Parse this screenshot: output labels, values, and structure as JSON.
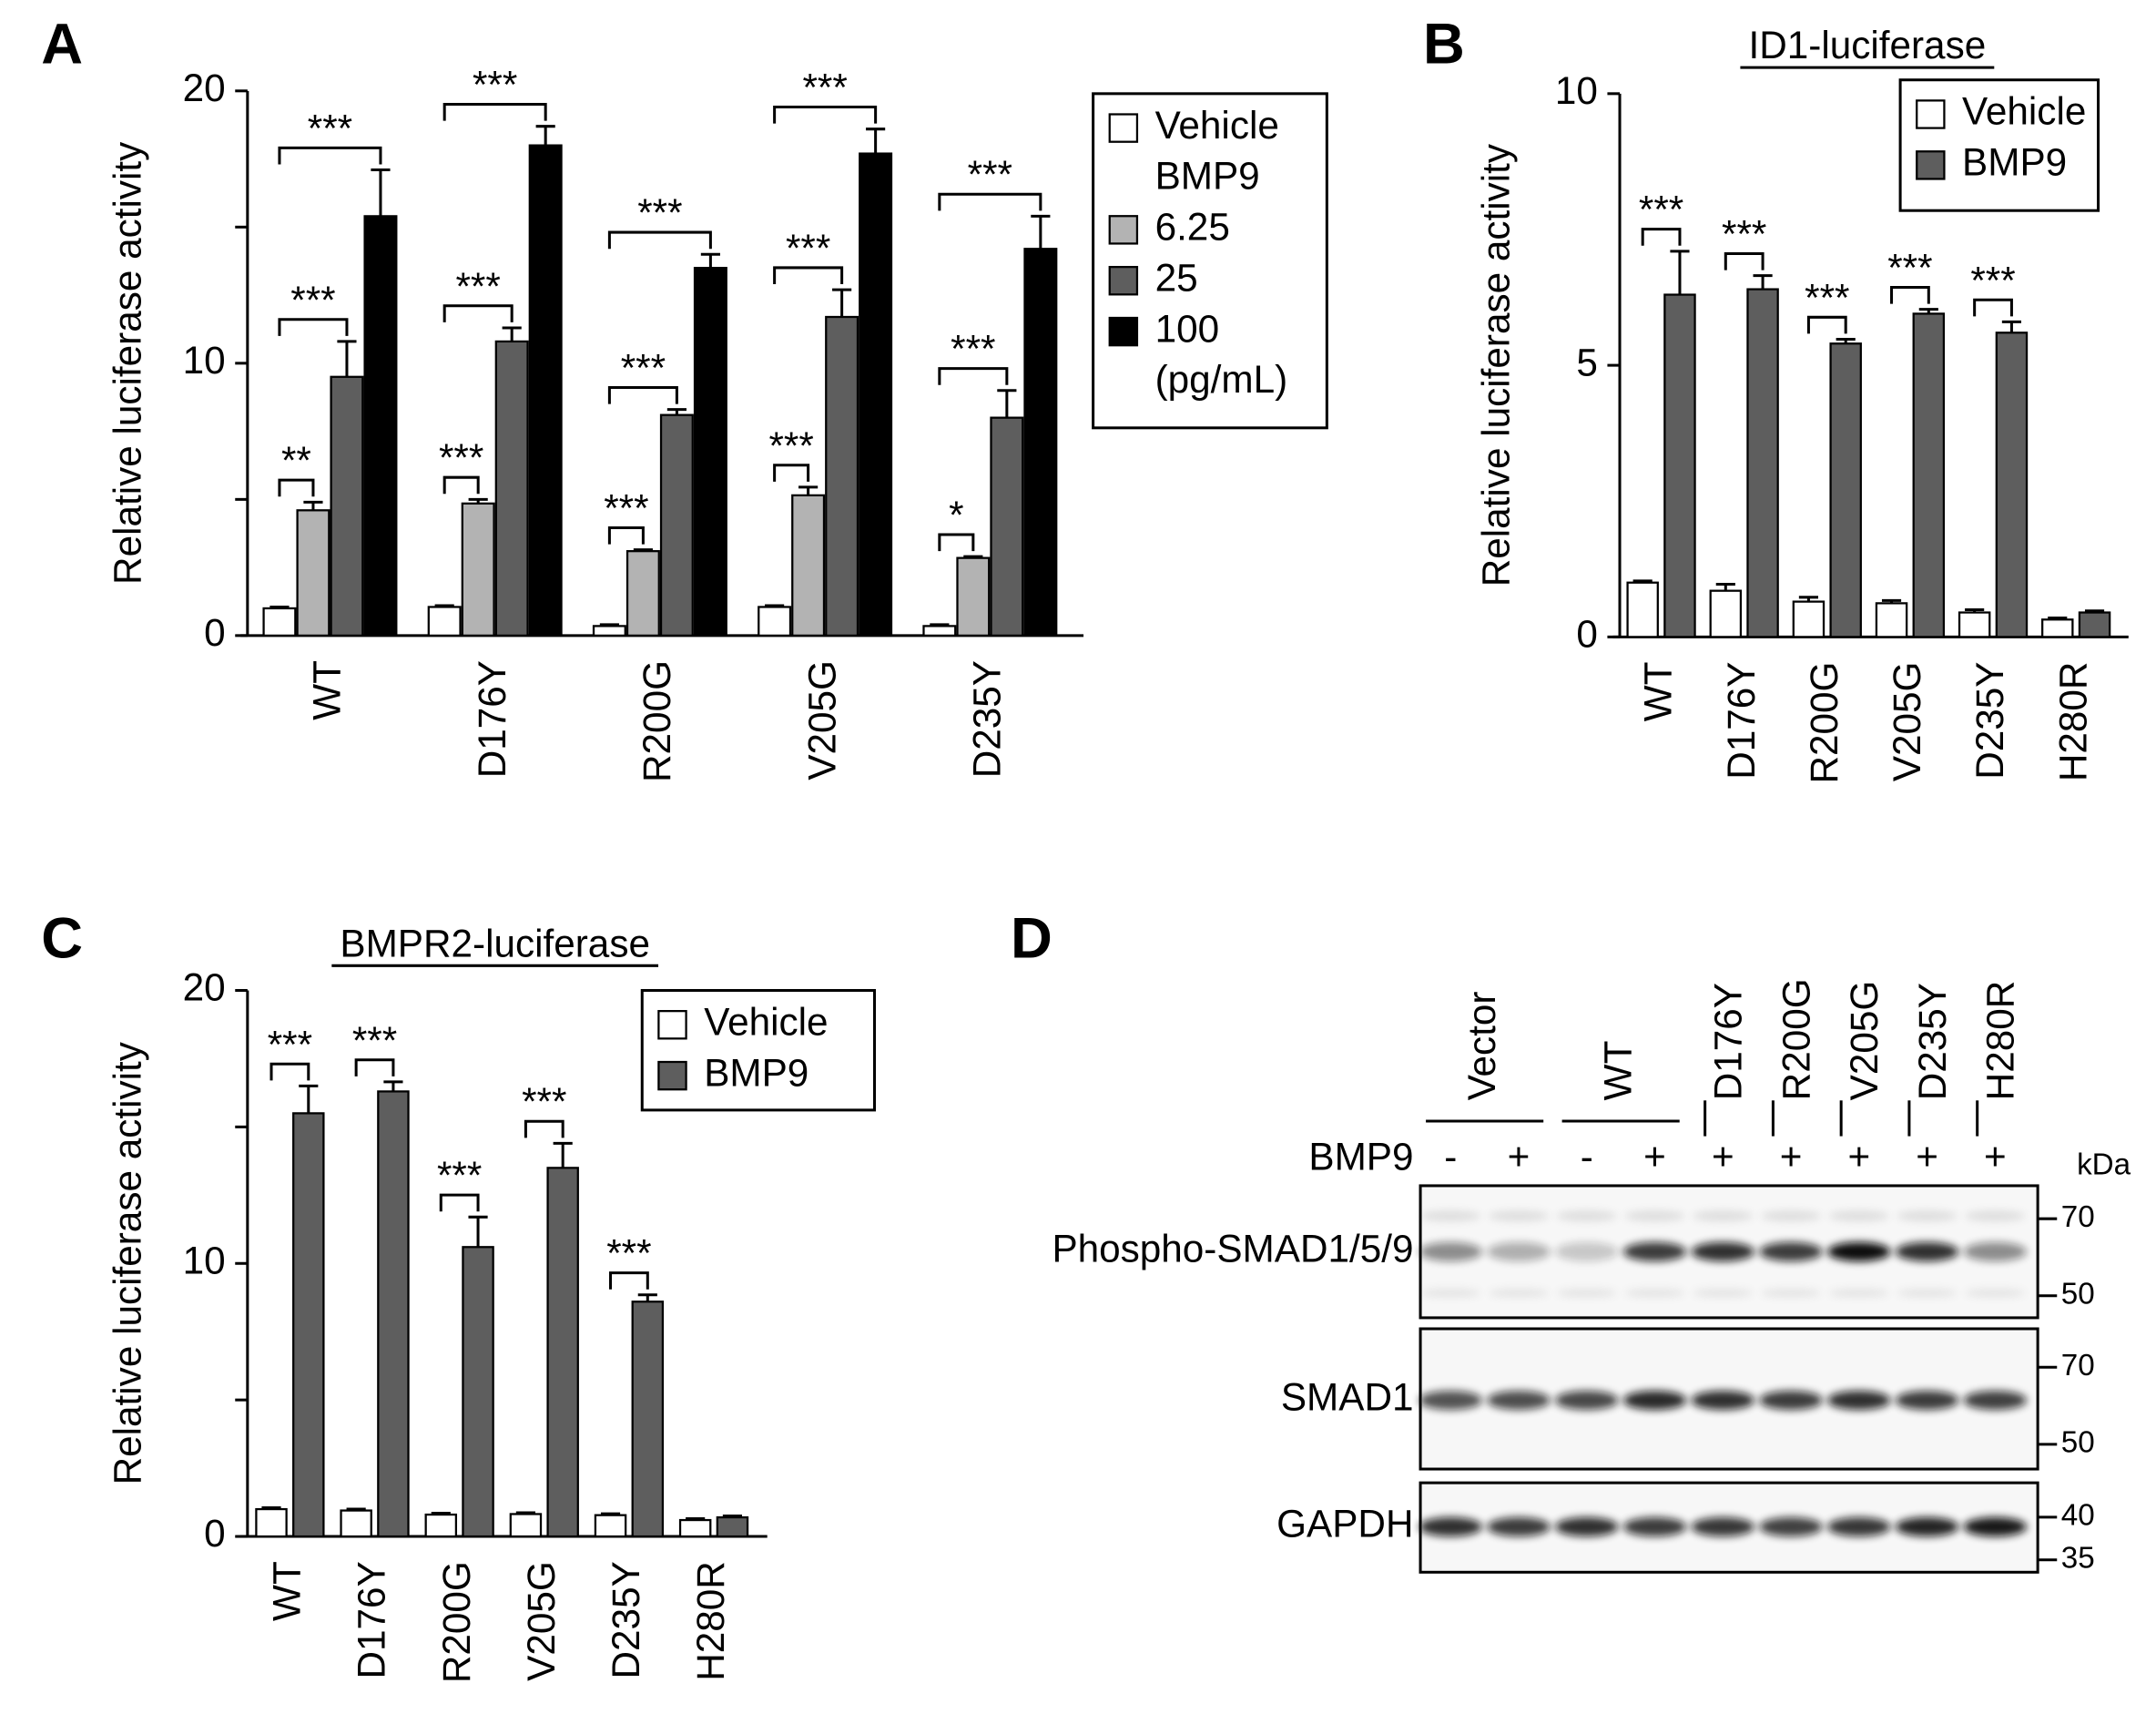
{
  "chart_data": [
    {
      "type": "bar",
      "panel_label": "A",
      "ylabel": "Relative luciferase activity",
      "categories": [
        "WT",
        "D176Y",
        "R200G",
        "V205G",
        "D235Y"
      ],
      "legend_subtitle": "BMP9",
      "legend_note": "(pg/mL)",
      "series": [
        {
          "name": "Vehicle",
          "color": "#ffffff",
          "values": [
            1.0,
            1.05,
            0.35,
            1.05,
            0.35
          ],
          "errors": [
            0.05,
            0.05,
            0.05,
            0.05,
            0.05
          ]
        },
        {
          "name": "6.25",
          "color": "#b3b3b3",
          "values": [
            4.6,
            4.85,
            3.1,
            5.15,
            2.85
          ],
          "errors": [
            0.3,
            0.15,
            0.05,
            0.3,
            0.05
          ]
        },
        {
          "name": "25",
          "color": "#5e5e5e",
          "values": [
            9.5,
            10.8,
            8.1,
            11.7,
            8.0
          ],
          "errors": [
            1.3,
            0.5,
            0.2,
            1.0,
            1.0
          ]
        },
        {
          "name": "100",
          "color": "#000000",
          "values": [
            15.4,
            18.0,
            13.5,
            17.7,
            14.2
          ],
          "errors": [
            1.7,
            0.7,
            0.5,
            0.9,
            1.2
          ]
        }
      ],
      "significance": [
        [
          "**",
          "***",
          "***"
        ],
        [
          "***",
          "***",
          "***"
        ],
        [
          "***",
          "***",
          "***"
        ],
        [
          "***",
          "***",
          "***"
        ],
        [
          "*",
          "***",
          "***"
        ]
      ],
      "ylim": [
        0,
        20
      ],
      "yticks": [
        0,
        10,
        20
      ],
      "minor_yticks": [
        5,
        15
      ]
    },
    {
      "type": "bar",
      "panel_label": "B",
      "title": "ID1-luciferase",
      "ylabel": "Relative luciferase activity",
      "categories": [
        "WT",
        "D176Y",
        "R200G",
        "V205G",
        "D235Y",
        "H280R"
      ],
      "series": [
        {
          "name": "Vehicle",
          "color": "#ffffff",
          "values": [
            1.0,
            0.85,
            0.65,
            0.62,
            0.45,
            0.32
          ],
          "errors": [
            0.03,
            0.12,
            0.08,
            0.05,
            0.05,
            0.03
          ]
        },
        {
          "name": "BMP9",
          "color": "#5e5e5e",
          "values": [
            6.3,
            6.4,
            5.4,
            5.95,
            5.6,
            0.45
          ],
          "errors": [
            0.8,
            0.25,
            0.08,
            0.08,
            0.2,
            0.03
          ]
        }
      ],
      "significance": [
        [
          "***"
        ],
        [
          "***"
        ],
        [
          "***"
        ],
        [
          "***"
        ],
        [
          "***"
        ],
        [
          null
        ]
      ],
      "ylim": [
        0,
        10
      ],
      "yticks": [
        0,
        5,
        10
      ]
    },
    {
      "type": "bar",
      "panel_label": "C",
      "title": "BMPR2-luciferase",
      "ylabel": "Relative luciferase activity",
      "categories": [
        "WT",
        "D176Y",
        "R200G",
        "V205G",
        "D235Y",
        "H280R"
      ],
      "series": [
        {
          "name": "Vehicle",
          "color": "#ffffff",
          "values": [
            1.0,
            0.95,
            0.8,
            0.82,
            0.78,
            0.6
          ],
          "errors": [
            0.05,
            0.05,
            0.05,
            0.05,
            0.05,
            0.05
          ]
        },
        {
          "name": "BMP9",
          "color": "#5e5e5e",
          "values": [
            15.5,
            16.3,
            10.6,
            13.5,
            8.6,
            0.7
          ],
          "errors": [
            1.0,
            0.35,
            1.1,
            0.9,
            0.25,
            0.05
          ]
        }
      ],
      "significance": [
        [
          "***"
        ],
        [
          "***"
        ],
        [
          "***"
        ],
        [
          "***"
        ],
        [
          "***"
        ],
        [
          null
        ]
      ],
      "ylim": [
        0,
        20
      ],
      "yticks": [
        0,
        10,
        20
      ],
      "minor_yticks": [
        5,
        15
      ]
    }
  ],
  "blot": {
    "panel_label": "D",
    "groups": [
      "Vector",
      "WT",
      "D176Y",
      "R200G",
      "V205G",
      "D235Y",
      "H280R"
    ],
    "treatment_label": "BMP9",
    "treatments": [
      "-",
      "+",
      "-",
      "+",
      "+",
      "+",
      "+",
      "+",
      "+"
    ],
    "unit": "kDa",
    "rows": [
      {
        "label": "Phospho-SMAD1/5/9",
        "markers": [
          70,
          50
        ]
      },
      {
        "label": "SMAD1",
        "markers": [
          70,
          50
        ]
      },
      {
        "label": "GAPDH",
        "markers": [
          40,
          35
        ]
      }
    ]
  }
}
